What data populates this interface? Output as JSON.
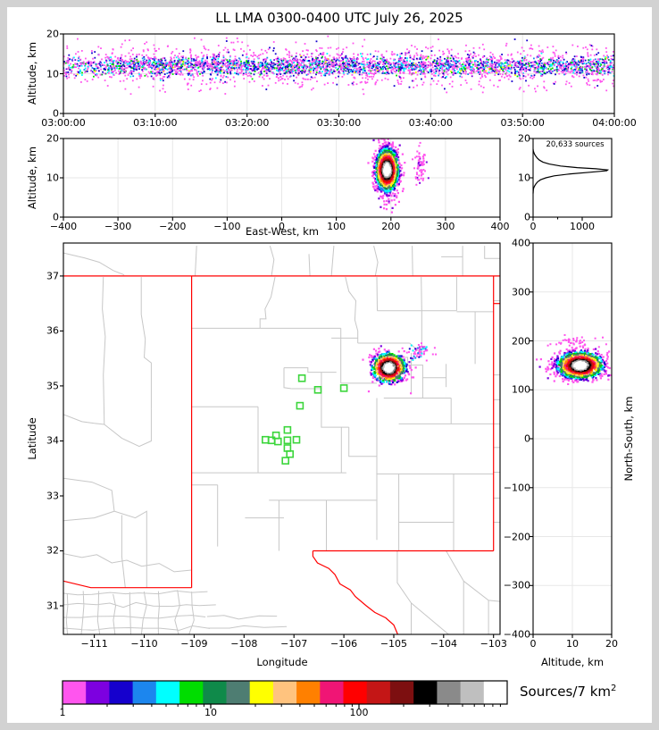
{
  "styles": {
    "background": "#ffffff",
    "frame": "#d2d2d2",
    "state_border": "#ff0000",
    "county_border": "#c7c7c7",
    "station_marker": "#3cd63c",
    "grid": "#e7e7e7",
    "curve": "#000000",
    "axis": "#000000"
  },
  "chart_data": [
    {
      "id": "time_height",
      "type": "scatter",
      "title": "LL LMA 0300-0400 UTC July 26, 2025",
      "ylabel": "Altitude, km",
      "x_tick_labels": [
        "03:00:00",
        "03:10:00",
        "03:20:00",
        "03:30:00",
        "03:40:00",
        "03:50:00",
        "04:00:00"
      ],
      "xlim_minutes": [
        0,
        60
      ],
      "ylim": [
        0,
        20
      ],
      "yticks": [
        0,
        10,
        20
      ],
      "description": "Dense continuous band of VHF lightning sources ~8-16 km altitude for the whole hour, centered near 12 km; magenta low-density fringe, blue/cyan/green denser core",
      "band": {
        "center_alt_km": 11.9,
        "core_sigma_km": 1.1,
        "halo_sigma_km": 2.6,
        "n_points": 4200
      }
    },
    {
      "id": "ew_height",
      "type": "scatter",
      "xlabel": "East-West, km",
      "ylabel": "Altitude, km",
      "xlim": [
        -400,
        400
      ],
      "xticks": [
        -400,
        -300,
        -200,
        -100,
        0,
        100,
        200,
        300,
        400
      ],
      "ylim": [
        0,
        20
      ],
      "yticks": [
        0,
        10,
        20
      ],
      "main_cell": {
        "ew_km": 193,
        "alt_km": 12,
        "sigma_ew_km": 10,
        "sigma_alt_km": 2.6,
        "n_points": 1700
      },
      "secondary_cell": {
        "ew_km": 253,
        "alt_km": 13.5,
        "sigma_ew_km": 6,
        "sigma_alt_km": 2.3,
        "n_points": 70
      }
    },
    {
      "id": "alt_histogram",
      "type": "line",
      "annotation": "20,633 sources",
      "xticks": [
        0,
        1000
      ],
      "xtick_labels": [
        "0",
        "1000"
      ],
      "xlim": [
        0,
        1600
      ],
      "ylim": [
        0,
        20
      ],
      "curve_alt_count": [
        [
          6,
          0
        ],
        [
          7,
          5
        ],
        [
          7.5,
          15
        ],
        [
          8,
          35
        ],
        [
          8.5,
          60
        ],
        [
          9,
          95
        ],
        [
          9.5,
          150
        ],
        [
          10,
          260
        ],
        [
          10.5,
          430
        ],
        [
          11,
          760
        ],
        [
          11.4,
          1150
        ],
        [
          11.8,
          1500
        ],
        [
          12,
          1520
        ],
        [
          12.3,
          1280
        ],
        [
          12.6,
          900
        ],
        [
          13,
          560
        ],
        [
          13.5,
          330
        ],
        [
          14,
          200
        ],
        [
          14.5,
          130
        ],
        [
          15,
          85
        ],
        [
          15.5,
          55
        ],
        [
          16,
          30
        ],
        [
          16.5,
          12
        ],
        [
          17,
          3
        ],
        [
          17.3,
          0
        ]
      ]
    },
    {
      "id": "plan_map",
      "type": "map-scatter",
      "xlabel": "Longitude",
      "ylabel": "Latitude",
      "lon_ticks": [
        -111,
        -110,
        -109,
        -108,
        -107,
        -106,
        -105,
        -104,
        -103
      ],
      "lat_ticks": [
        31,
        32,
        33,
        34,
        35,
        36,
        37
      ],
      "lon_lim": [
        -111.62,
        -102.87
      ],
      "lat_lim": [
        30.48,
        37.6
      ],
      "storm_cell": {
        "lon": -105.1,
        "lat": 35.33,
        "sigma_lon_deg": 0.16,
        "sigma_lat_deg": 0.13,
        "n_points": 950
      },
      "debris_cell": {
        "lon": -104.45,
        "lat": 35.62,
        "n_points": 60
      },
      "stations_lon_lat": [
        [
          -106.84,
          35.14
        ],
        [
          -106.52,
          34.93
        ],
        [
          -106.0,
          34.96
        ],
        [
          -106.88,
          34.64
        ],
        [
          -107.13,
          34.2
        ],
        [
          -107.36,
          34.1
        ],
        [
          -107.57,
          34.02
        ],
        [
          -107.45,
          34.01
        ],
        [
          -107.32,
          33.99
        ],
        [
          -107.13,
          34.01
        ],
        [
          -106.95,
          34.02
        ],
        [
          -107.13,
          33.87
        ],
        [
          -107.08,
          33.76
        ],
        [
          -107.17,
          33.64
        ]
      ]
    },
    {
      "id": "ns_height",
      "type": "scatter",
      "xlabel": "Altitude, km",
      "ylabel": "North-South, km",
      "xlim": [
        0,
        20
      ],
      "xticks": [
        0,
        10,
        20
      ],
      "ylim": [
        -400,
        400
      ],
      "yticks": [
        -400,
        -300,
        -200,
        -100,
        0,
        100,
        200,
        300,
        400
      ],
      "main_cell": {
        "ns_km": 150,
        "alt_km": 12,
        "sigma_ns_km": 13,
        "sigma_alt_km": 2.8,
        "n_points": 1500
      },
      "sprinkle": {
        "ns_km": 196,
        "alt_km": 11,
        "n_points": 45
      }
    },
    {
      "id": "colorbar",
      "type": "legend",
      "label": "Sources/7 km",
      "exponent": "2",
      "scale": "log",
      "range": [
        1,
        1000
      ],
      "tick_labels": [
        "1",
        "10",
        "100"
      ],
      "colors": [
        "#ff55ee",
        "#7d00e0",
        "#1500cd",
        "#1c86ee",
        "#00ffff",
        "#00dd00",
        "#0f8a4a",
        "#4e7d72",
        "#ffff00",
        "#ffc37e",
        "#ff8000",
        "#f01575",
        "#ff0000",
        "#c41616",
        "#7d0f10",
        "#000000",
        "#8a8a8a",
        "#bfbfbf",
        "#ffffff"
      ]
    }
  ]
}
